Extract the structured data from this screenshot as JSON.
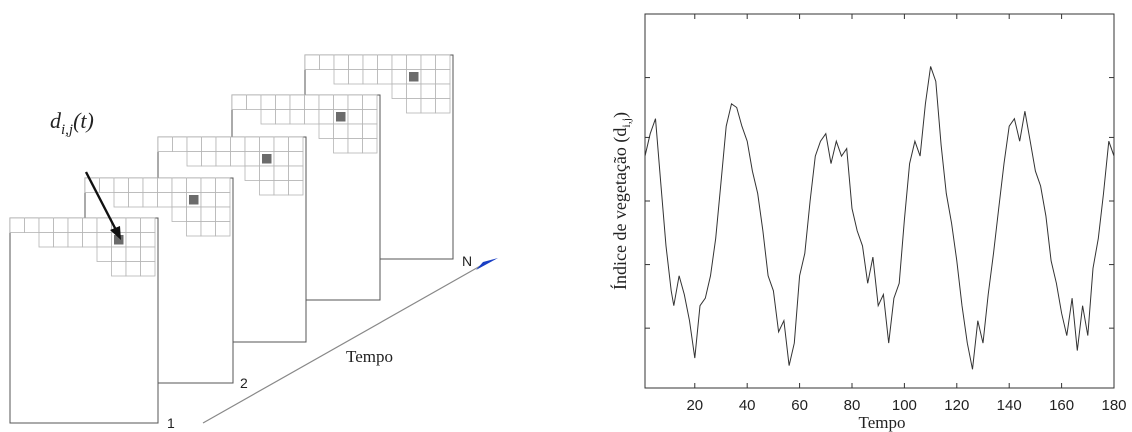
{
  "stack_diagram": {
    "pixel_label": "d",
    "pixel_label_sub": "i,j",
    "pixel_label_suffix": "(t)",
    "frame_labels": [
      "1",
      "2",
      "N"
    ],
    "time_axis_label": "Tempo",
    "colors": {
      "grid": "#b5b5b5",
      "frame": "#555555",
      "pixel": "#6b6b6b",
      "arrowhead": "#1a3fc4"
    }
  },
  "chart_data": {
    "type": "line",
    "xlabel": "Tempo",
    "ylabel": "Índice de vegetação (d",
    "ylabel_sub": "i,j",
    "ylabel_close": ")",
    "xlim": [
      1,
      180
    ],
    "ylim": [
      0,
      1
    ],
    "x_ticks": [
      20,
      40,
      60,
      80,
      100,
      120,
      140,
      160,
      180
    ],
    "grid": false,
    "series": [
      {
        "x": [
          1,
          3,
          5,
          7,
          9,
          11,
          12,
          14,
          16,
          18,
          20,
          22,
          24,
          26,
          28,
          30,
          32,
          34,
          36,
          38,
          40,
          42,
          44,
          46,
          48,
          50,
          52,
          54,
          56,
          58,
          60,
          62,
          64,
          66,
          68,
          70,
          72,
          74,
          76,
          78,
          80,
          82,
          84,
          86,
          88,
          90,
          92,
          94,
          96,
          98,
          100,
          102,
          104,
          106,
          108,
          110,
          112,
          114,
          116,
          118,
          120,
          122,
          124,
          126,
          128,
          130,
          132,
          134,
          136,
          138,
          140,
          142,
          144,
          146,
          148,
          150,
          152,
          154,
          156,
          158,
          160,
          162,
          164,
          166,
          168,
          170,
          172,
          174,
          176,
          178,
          180
        ],
        "values": [
          0.62,
          0.68,
          0.72,
          0.55,
          0.38,
          0.26,
          0.22,
          0.3,
          0.25,
          0.18,
          0.08,
          0.22,
          0.24,
          0.3,
          0.4,
          0.55,
          0.7,
          0.76,
          0.75,
          0.7,
          0.66,
          0.58,
          0.52,
          0.42,
          0.3,
          0.26,
          0.15,
          0.18,
          0.06,
          0.12,
          0.3,
          0.36,
          0.5,
          0.62,
          0.66,
          0.68,
          0.6,
          0.66,
          0.62,
          0.64,
          0.48,
          0.42,
          0.38,
          0.28,
          0.35,
          0.22,
          0.25,
          0.12,
          0.24,
          0.28,
          0.45,
          0.6,
          0.66,
          0.62,
          0.76,
          0.86,
          0.82,
          0.65,
          0.52,
          0.44,
          0.34,
          0.22,
          0.12,
          0.05,
          0.18,
          0.12,
          0.25,
          0.36,
          0.48,
          0.6,
          0.7,
          0.72,
          0.66,
          0.74,
          0.66,
          0.58,
          0.54,
          0.46,
          0.34,
          0.28,
          0.2,
          0.14,
          0.24,
          0.1,
          0.22,
          0.14,
          0.32,
          0.4,
          0.52,
          0.66,
          0.62
        ]
      }
    ]
  }
}
